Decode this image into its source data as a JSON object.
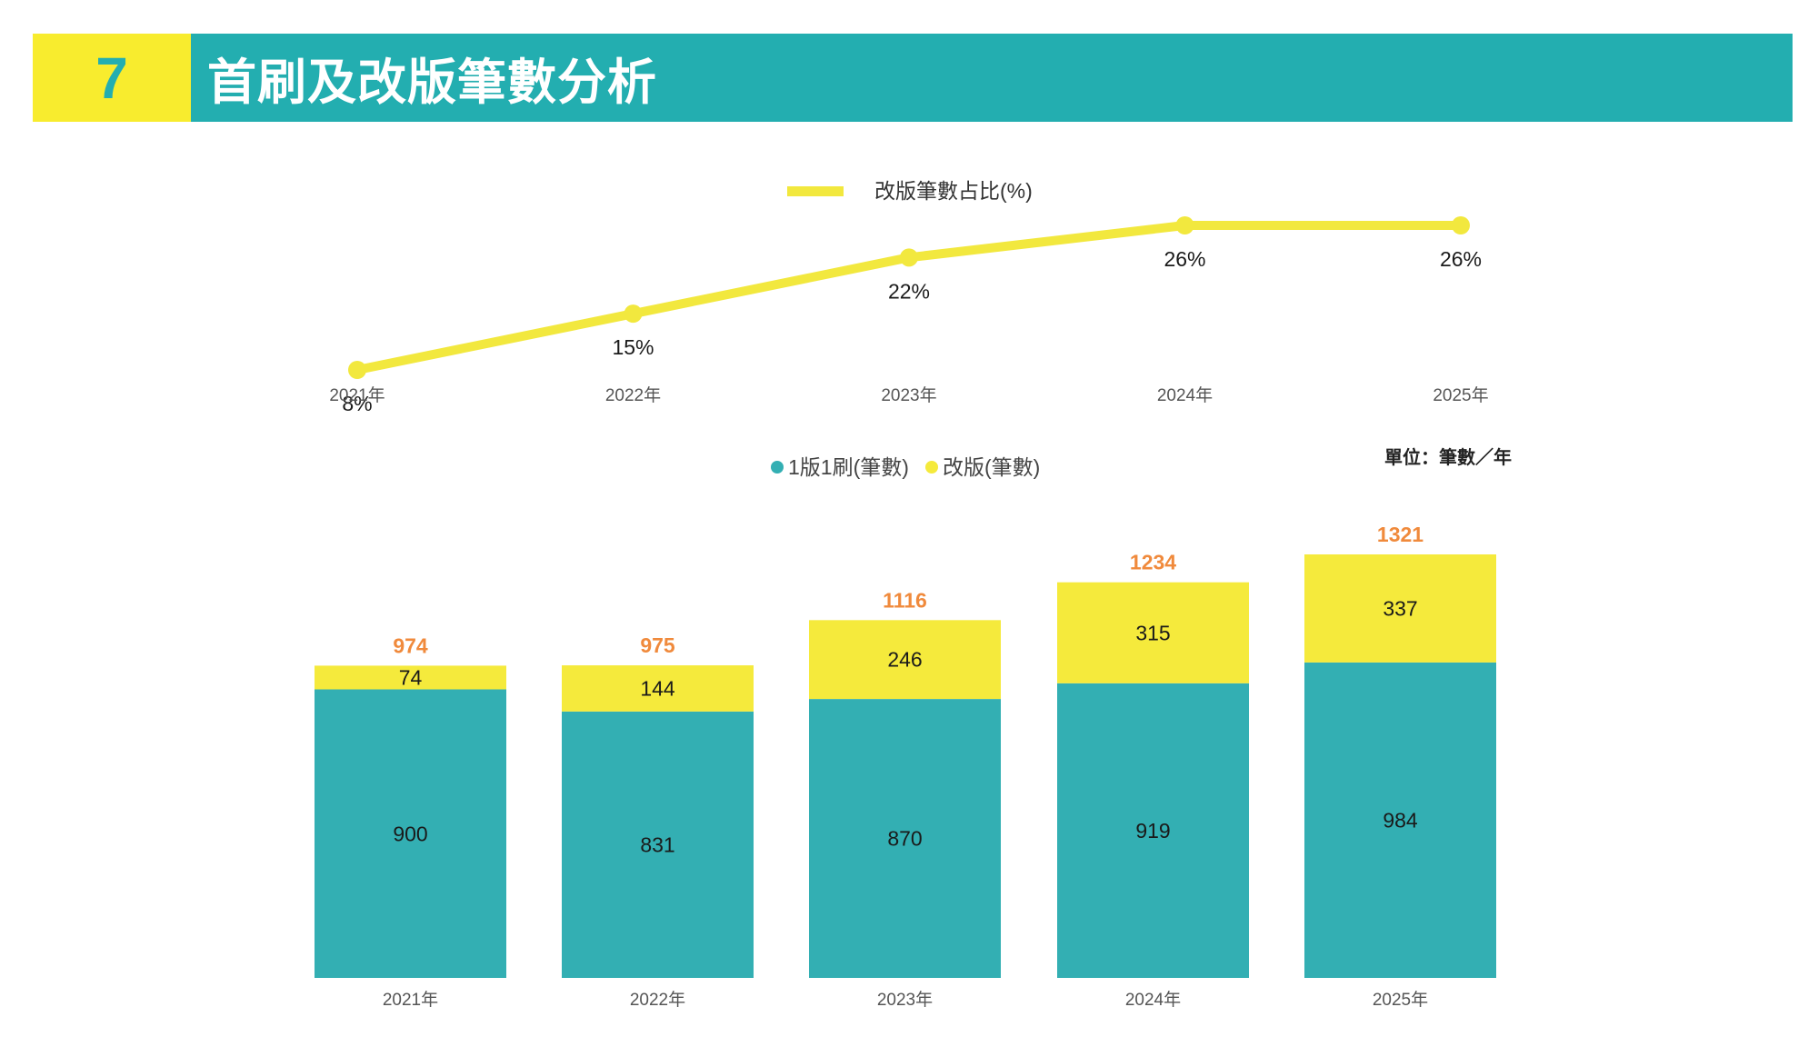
{
  "header": {
    "section_number": "7",
    "title": "首刷及改版筆數分析"
  },
  "colors": {
    "teal": "#33AFB3",
    "header_teal": "#23AEB0",
    "yellow": "#F5EA3C",
    "header_yellow": "#F8EC2E",
    "total_orange": "#F08A3C",
    "text_dark": "#1a1a1a",
    "axis_text": "#555555"
  },
  "chart_data": [
    {
      "type": "line",
      "title": "",
      "legend": [
        "改版筆數占比(%)"
      ],
      "legend_position": "top-center",
      "categories": [
        "2021年",
        "2022年",
        "2023年",
        "2024年",
        "2025年"
      ],
      "series": [
        {
          "name": "改版筆數占比(%)",
          "values": [
            8,
            15,
            22,
            26,
            26
          ],
          "labels": [
            "8%",
            "15%",
            "22%",
            "26%",
            "26%"
          ]
        }
      ],
      "ylim": [
        0,
        30
      ],
      "grid": false
    },
    {
      "type": "bar",
      "stacked": true,
      "legend": [
        "1版1刷(筆數)",
        "改版(筆數)"
      ],
      "legend_position": "top-center",
      "unit_note": "單位：筆數／年",
      "categories": [
        "2021年",
        "2022年",
        "2023年",
        "2024年",
        "2025年"
      ],
      "series": [
        {
          "name": "1版1刷(筆數)",
          "values": [
            900,
            831,
            870,
            919,
            984
          ]
        },
        {
          "name": "改版(筆數)",
          "values": [
            74,
            144,
            246,
            315,
            337
          ]
        }
      ],
      "totals": [
        974,
        975,
        1116,
        1234,
        1321
      ],
      "ylim": [
        0,
        1321
      ],
      "grid": false
    }
  ]
}
